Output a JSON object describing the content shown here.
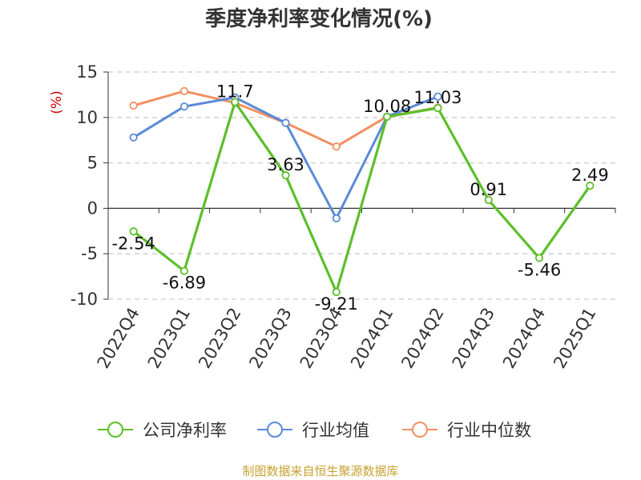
{
  "chart_data": {
    "type": "line",
    "title": "季度净利率变化情况(%)",
    "ylabel": "(%)",
    "xlabel": "",
    "categories": [
      "2022Q4",
      "2023Q1",
      "2023Q2",
      "2023Q3",
      "2023Q4",
      "2024Q1",
      "2024Q2",
      "2024Q3",
      "2024Q4",
      "2025Q1"
    ],
    "ylim": [
      -10,
      15
    ],
    "yticks": [
      -10,
      -5,
      0,
      5,
      10,
      15
    ],
    "grid": true,
    "legend_position": "bottom",
    "series": [
      {
        "name": "公司净利率",
        "color": "#5cbf2a",
        "values": [
          -2.54,
          -6.89,
          11.7,
          3.63,
          -9.21,
          10.08,
          11.03,
          0.91,
          -5.46,
          2.49
        ],
        "labels": [
          "-2.54",
          "-6.89",
          "11.7",
          "3.63",
          "-9.21",
          "10.08",
          "11.03",
          "0.91",
          "-5.46",
          "2.49"
        ]
      },
      {
        "name": "行业均值",
        "color": "#5b8ad8",
        "values": [
          7.8,
          11.2,
          12.2,
          9.4,
          -1.1,
          10.1,
          12.3,
          null,
          null,
          null
        ]
      },
      {
        "name": "行业中位数",
        "color": "#f39062",
        "values": [
          11.3,
          12.9,
          11.6,
          9.4,
          6.8,
          10.1,
          11.1,
          null,
          null,
          null
        ]
      }
    ],
    "source": "制图数据来自恒生聚源数据库"
  }
}
